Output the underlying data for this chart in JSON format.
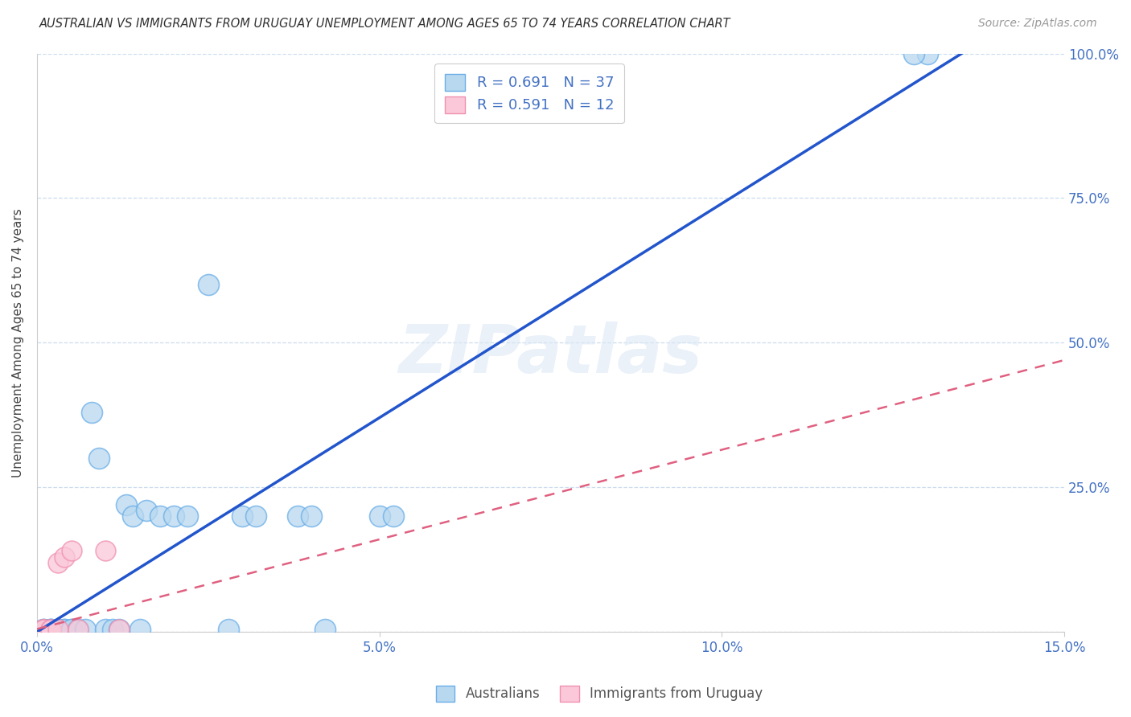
{
  "title": "AUSTRALIAN VS IMMIGRANTS FROM URUGUAY UNEMPLOYMENT AMONG AGES 65 TO 74 YEARS CORRELATION CHART",
  "source": "Source: ZipAtlas.com",
  "ylabel": "Unemployment Among Ages 65 to 74 years",
  "xmin": 0.0,
  "xmax": 0.15,
  "ymin": 0.0,
  "ymax": 1.0,
  "xticks": [
    0.0,
    0.05,
    0.1,
    0.15
  ],
  "xtick_labels": [
    "0.0%",
    "5.0%",
    "10.0%",
    "15.0%"
  ],
  "yticks": [
    0.0,
    0.25,
    0.5,
    0.75,
    1.0
  ],
  "ytick_labels_right": [
    "",
    "25.0%",
    "50.0%",
    "75.0%",
    "100.0%"
  ],
  "legend_line1": "R = 0.691   N = 37",
  "legend_line2": "R = 0.591   N = 12",
  "legend_label_australians": "Australians",
  "legend_label_uruguay": "Immigrants from Uruguay",
  "blue_edge": "#6aaee8",
  "blue_fill": "#b8d8f0",
  "pink_edge": "#f090b0",
  "pink_fill": "#fac8d8",
  "line_blue": "#2255cc",
  "line_pink": "#e06080",
  "watermark": "ZIPatlas",
  "blue_scatter_x": [
    0.001,
    0.001,
    0.002,
    0.002,
    0.002,
    0.003,
    0.003,
    0.003,
    0.004,
    0.004,
    0.005,
    0.005,
    0.006,
    0.007,
    0.008,
    0.009,
    0.01,
    0.011,
    0.012,
    0.013,
    0.014,
    0.015,
    0.016,
    0.018,
    0.02,
    0.022,
    0.025,
    0.028,
    0.03,
    0.032,
    0.038,
    0.04,
    0.042,
    0.05,
    0.052,
    0.13,
    0.128
  ],
  "blue_scatter_y": [
    0.005,
    0.005,
    0.005,
    0.005,
    0.005,
    0.005,
    0.005,
    0.005,
    0.005,
    0.005,
    0.005,
    0.005,
    0.005,
    0.005,
    0.38,
    0.3,
    0.005,
    0.005,
    0.005,
    0.22,
    0.2,
    0.005,
    0.21,
    0.2,
    0.2,
    0.2,
    0.6,
    0.005,
    0.2,
    0.2,
    0.2,
    0.2,
    0.005,
    0.2,
    0.2,
    1.0,
    1.0
  ],
  "pink_scatter_x": [
    0.001,
    0.001,
    0.001,
    0.002,
    0.002,
    0.003,
    0.003,
    0.004,
    0.005,
    0.006,
    0.01,
    0.012
  ],
  "pink_scatter_y": [
    0.005,
    0.005,
    0.005,
    0.005,
    0.005,
    0.005,
    0.12,
    0.13,
    0.14,
    0.005,
    0.14,
    0.005
  ],
  "blue_line_x": [
    0.0,
    0.135
  ],
  "blue_line_y": [
    0.0,
    1.0
  ],
  "pink_line_x": [
    0.0,
    0.15
  ],
  "pink_line_y": [
    0.005,
    0.47
  ]
}
